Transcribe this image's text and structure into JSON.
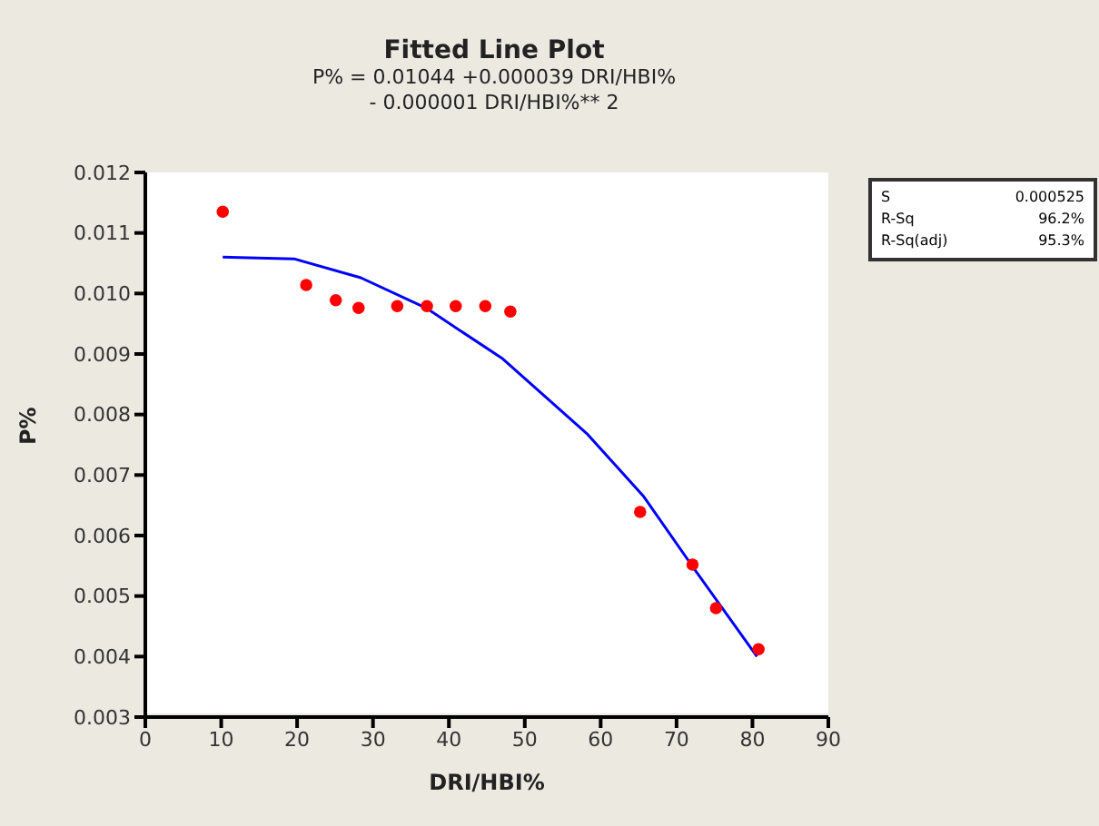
{
  "chart_data": {
    "type": "scatter",
    "title": "Fitted Line Plot",
    "subtitle": "P% =  0.01044 +0.000039 DRI/HBI%\n- 0.000001 DRI/HBI%** 2",
    "xlabel": "DRI/HBI%",
    "ylabel": "P%",
    "xlim": [
      0,
      90
    ],
    "xticks": [
      0,
      10,
      20,
      30,
      40,
      50,
      60,
      70,
      80,
      90
    ],
    "ylim": [
      0.003,
      0.012
    ],
    "yticks": [
      0.003,
      0.004,
      0.005,
      0.006,
      0.007,
      0.008,
      0.009,
      {
        "value": 0.01,
        "label": "0.010"
      },
      0.011,
      0.012
    ],
    "grid": false,
    "annotations": [
      "S    0.000525",
      "R-Sq    96.2%",
      "R-Sq(adj)    95.3%"
    ],
    "series": [
      {
        "marker": "circle",
        "color": "#ff0000",
        "x": [
          10.2,
          21.2,
          25.1,
          28.1,
          33.2,
          37.1,
          40.9,
          44.8,
          48.1,
          65.2,
          72.1,
          75.2,
          80.8
        ],
        "values": [
          0.01135,
          0.01014,
          0.00989,
          0.00976,
          0.00979,
          0.00979,
          0.00979,
          0.00979,
          0.0097,
          0.00639,
          0.00552,
          0.0048,
          0.00412
        ]
      },
      {
        "type": "line",
        "marker": "none",
        "color": "#0000ff",
        "x": [
          10.2,
          19.7,
          28.4,
          37,
          47.1,
          58.3,
          65.7,
          72.1,
          80.6
        ],
        "values": [
          0.0106,
          0.01057,
          0.01026,
          0.00976,
          0.00892,
          0.00767,
          0.00664,
          0.00549,
          0.004
        ]
      }
    ]
  }
}
